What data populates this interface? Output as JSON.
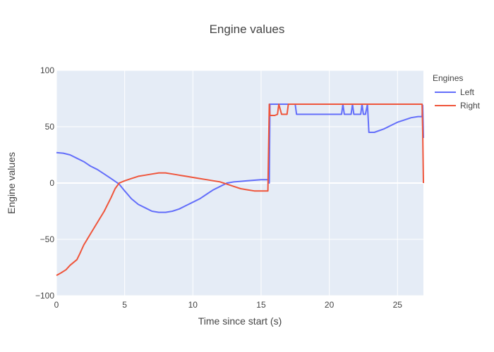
{
  "chart_data": {
    "type": "line",
    "title": "Engine values",
    "xlabel": "Time since start (s)",
    "ylabel": "Engine values",
    "xlim": [
      0,
      26.9
    ],
    "ylim": [
      -100,
      100
    ],
    "x_ticks": [
      0,
      5,
      10,
      15,
      20,
      25
    ],
    "y_ticks": [
      -100,
      -50,
      0,
      50,
      100
    ],
    "y_tick_labels": [
      "−100",
      "−50",
      "0",
      "50",
      "100"
    ],
    "grid": true,
    "legend": {
      "title": "Engines",
      "placement": "top-right, outside plot"
    },
    "series": [
      {
        "name": "Left",
        "color": "#636efa",
        "points": [
          [
            0,
            27
          ],
          [
            0.5,
            26.5
          ],
          [
            1,
            25
          ],
          [
            1.5,
            22
          ],
          [
            2,
            19
          ],
          [
            2.5,
            15
          ],
          [
            3,
            12
          ],
          [
            3.5,
            8
          ],
          [
            4,
            4
          ],
          [
            4.3,
            1.5
          ],
          [
            4.6,
            -1
          ],
          [
            5,
            -7
          ],
          [
            5.5,
            -14
          ],
          [
            6,
            -19
          ],
          [
            6.5,
            -22
          ],
          [
            7,
            -25
          ],
          [
            7.5,
            -26
          ],
          [
            8,
            -26
          ],
          [
            8.5,
            -25
          ],
          [
            9,
            -23
          ],
          [
            9.5,
            -20
          ],
          [
            10,
            -17
          ],
          [
            10.5,
            -14
          ],
          [
            11,
            -10
          ],
          [
            11.5,
            -6
          ],
          [
            12,
            -3
          ],
          [
            12.5,
            0
          ],
          [
            13,
            1
          ],
          [
            13.5,
            1.5
          ],
          [
            14,
            2
          ],
          [
            14.5,
            2.5
          ],
          [
            15,
            3
          ],
          [
            15.5,
            3
          ],
          [
            15.6,
            0
          ],
          [
            15.65,
            70
          ],
          [
            16,
            70
          ],
          [
            17,
            70
          ],
          [
            17.5,
            70
          ],
          [
            17.6,
            61
          ],
          [
            18,
            61
          ],
          [
            20.9,
            61
          ],
          [
            21,
            70
          ],
          [
            21.1,
            61
          ],
          [
            21.6,
            61
          ],
          [
            21.7,
            70
          ],
          [
            21.8,
            61
          ],
          [
            22.3,
            61
          ],
          [
            22.4,
            70
          ],
          [
            22.5,
            61
          ],
          [
            22.65,
            61
          ],
          [
            22.8,
            70
          ],
          [
            22.9,
            45
          ],
          [
            23.3,
            45
          ],
          [
            24,
            48
          ],
          [
            24.5,
            51
          ],
          [
            25,
            54
          ],
          [
            25.5,
            56
          ],
          [
            26,
            58
          ],
          [
            26.5,
            59
          ],
          [
            26.8,
            59
          ],
          [
            26.85,
            69
          ],
          [
            26.9,
            40
          ]
        ]
      },
      {
        "name": "Right",
        "color": "#ef553b",
        "points": [
          [
            0,
            -82
          ],
          [
            0.3,
            -80
          ],
          [
            0.7,
            -77
          ],
          [
            1,
            -73
          ],
          [
            1.5,
            -68
          ],
          [
            1.7,
            -63
          ],
          [
            2,
            -55
          ],
          [
            2.5,
            -45
          ],
          [
            3,
            -35
          ],
          [
            3.5,
            -25
          ],
          [
            4,
            -13
          ],
          [
            4.3,
            -5
          ],
          [
            4.6,
            0
          ],
          [
            5,
            2
          ],
          [
            5.5,
            4
          ],
          [
            6,
            6
          ],
          [
            6.5,
            7
          ],
          [
            7,
            8
          ],
          [
            7.5,
            9
          ],
          [
            8,
            9
          ],
          [
            8.5,
            8
          ],
          [
            9,
            7
          ],
          [
            9.5,
            6
          ],
          [
            10,
            5
          ],
          [
            10.5,
            4
          ],
          [
            11,
            3
          ],
          [
            11.5,
            2
          ],
          [
            12,
            1
          ],
          [
            12.5,
            -1
          ],
          [
            13,
            -3
          ],
          [
            13.5,
            -5
          ],
          [
            14,
            -6
          ],
          [
            14.5,
            -7
          ],
          [
            15.5,
            -7
          ],
          [
            15.6,
            70
          ],
          [
            15.65,
            60
          ],
          [
            16,
            60
          ],
          [
            16.2,
            61
          ],
          [
            16.3,
            70
          ],
          [
            16.5,
            61
          ],
          [
            16.9,
            61
          ],
          [
            17,
            70
          ],
          [
            26.8,
            70
          ],
          [
            26.85,
            45
          ],
          [
            26.9,
            0
          ]
        ]
      }
    ]
  }
}
